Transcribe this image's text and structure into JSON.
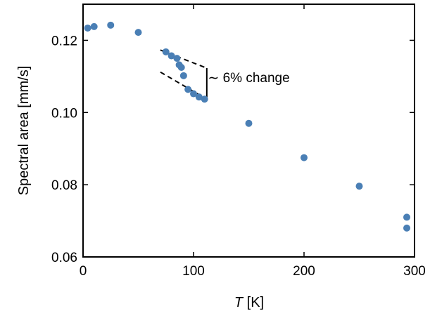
{
  "chart_data": {
    "type": "scatter",
    "xlabel_italic": "T",
    "xlabel_unit": " [K]",
    "ylabel": "Spectral area [mm/s]",
    "xlim": [
      0,
      300
    ],
    "ylim": [
      0.06,
      0.13
    ],
    "x_ticks": [
      {
        "value": 0,
        "label": "0"
      },
      {
        "value": 100,
        "label": "100"
      },
      {
        "value": 200,
        "label": "200"
      },
      {
        "value": 300,
        "label": "300"
      }
    ],
    "y_ticks": [
      {
        "value": 0.06,
        "label": "0.06"
      },
      {
        "value": 0.08,
        "label": "0.08"
      },
      {
        "value": 0.1,
        "label": "0.10"
      },
      {
        "value": 0.12,
        "label": "0.12"
      }
    ],
    "grid": false,
    "marker_color": "#4a7fb5",
    "points": [
      {
        "x": 4.2,
        "y": 0.1234
      },
      {
        "x": 10,
        "y": 0.1238
      },
      {
        "x": 25,
        "y": 0.1242
      },
      {
        "x": 50,
        "y": 0.1222
      },
      {
        "x": 75,
        "y": 0.1168
      },
      {
        "x": 80,
        "y": 0.1157
      },
      {
        "x": 85,
        "y": 0.115
      },
      {
        "x": 87,
        "y": 0.1132
      },
      {
        "x": 89,
        "y": 0.1125
      },
      {
        "x": 91,
        "y": 0.1102
      },
      {
        "x": 95,
        "y": 0.1064
      },
      {
        "x": 100,
        "y": 0.1052
      },
      {
        "x": 105,
        "y": 0.1043
      },
      {
        "x": 110,
        "y": 0.1037
      },
      {
        "x": 150,
        "y": 0.097
      },
      {
        "x": 200,
        "y": 0.0875
      },
      {
        "x": 250,
        "y": 0.0796
      },
      {
        "x": 293,
        "y": 0.071
      },
      {
        "x": 293,
        "y": 0.068
      }
    ],
    "annotation": {
      "text": "∼ 6% change",
      "upper_line": {
        "x1": 70,
        "y1": 0.1173,
        "x2": 112,
        "y2": 0.1123
      },
      "lower_line": {
        "x1": 70,
        "y1": 0.1112,
        "x2": 112,
        "y2": 0.1037
      },
      "bracket_x": 112,
      "bracket_y": [
        0.1037,
        0.1123
      ],
      "text_anchor": {
        "x": 113,
        "y": 0.1084
      }
    }
  }
}
